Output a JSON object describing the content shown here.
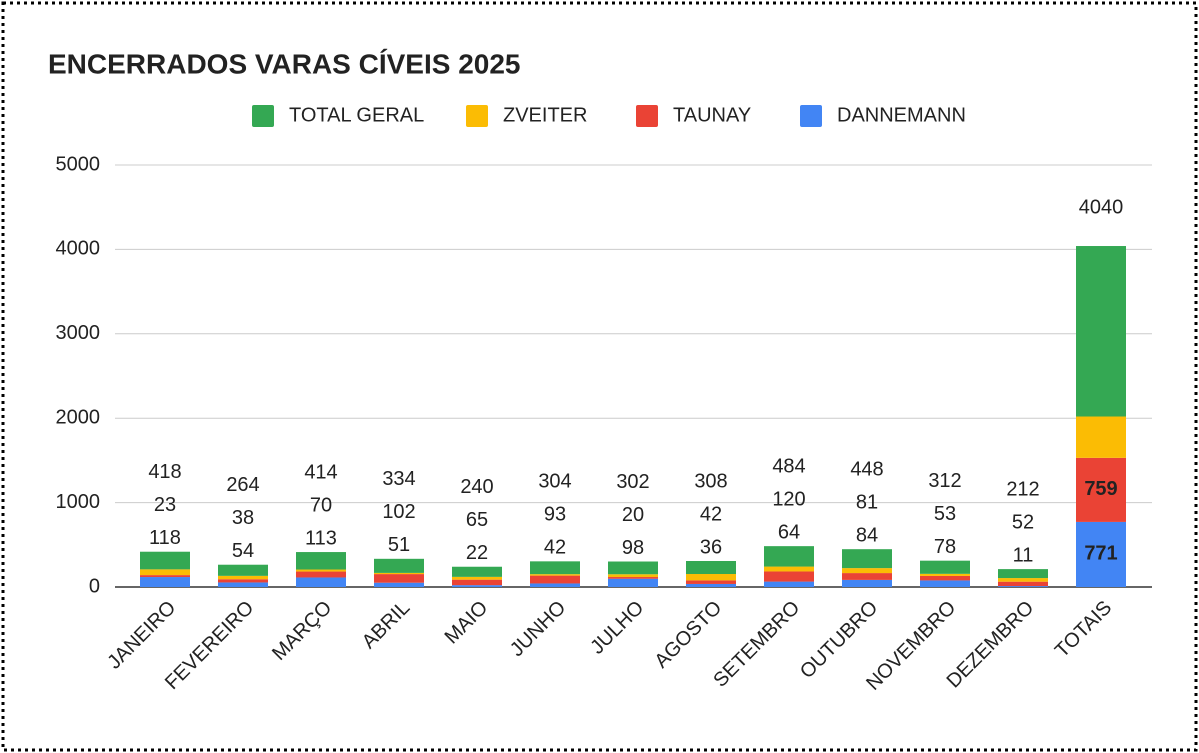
{
  "chart_data": {
    "type": "stacked_bar",
    "title": "ENCERRADOS VARAS CÍVEIS 2025",
    "categories": [
      "JANEIRO",
      "FEVEREIRO",
      "MARÇO",
      "ABRIL",
      "MAIO",
      "JUNHO",
      "JULHO",
      "AGOSTO",
      "SETEMBRO",
      "OUTUBRO",
      "NOVEMBRO",
      "DEZEMBRO",
      "TOTAIS"
    ],
    "series": [
      {
        "name": "DANNEMANN",
        "color": "#4285f4",
        "show_labels": true,
        "values": [
          118,
          54,
          113,
          51,
          22,
          42,
          98,
          36,
          64,
          84,
          78,
          11,
          771
        ]
      },
      {
        "name": "TAUNAY",
        "color": "#ea4335",
        "show_labels": true,
        "values": [
          23,
          38,
          70,
          102,
          65,
          93,
          20,
          42,
          120,
          81,
          53,
          52,
          759
        ]
      },
      {
        "name": "ZVEITER",
        "color": "#fbbc04",
        "show_labels": false,
        "values": [
          68,
          40,
          24,
          14,
          33,
          17,
          33,
          76,
          58,
          59,
          25,
          43,
          490
        ]
      },
      {
        "name": "TOTAL GERAL",
        "color": "#34a853",
        "show_labels": false,
        "values": [
          209,
          132,
          207,
          167,
          120,
          152,
          151,
          154,
          242,
          224,
          156,
          106,
          2020
        ]
      }
    ],
    "stack_totals": [
      418,
      264,
      414,
      334,
      240,
      304,
      302,
      308,
      484,
      448,
      312,
      212,
      4040
    ],
    "ylim": [
      0,
      5000
    ],
    "yticks": [
      0,
      1000,
      2000,
      3000,
      4000,
      5000
    ],
    "grid": true,
    "legend": "top"
  }
}
